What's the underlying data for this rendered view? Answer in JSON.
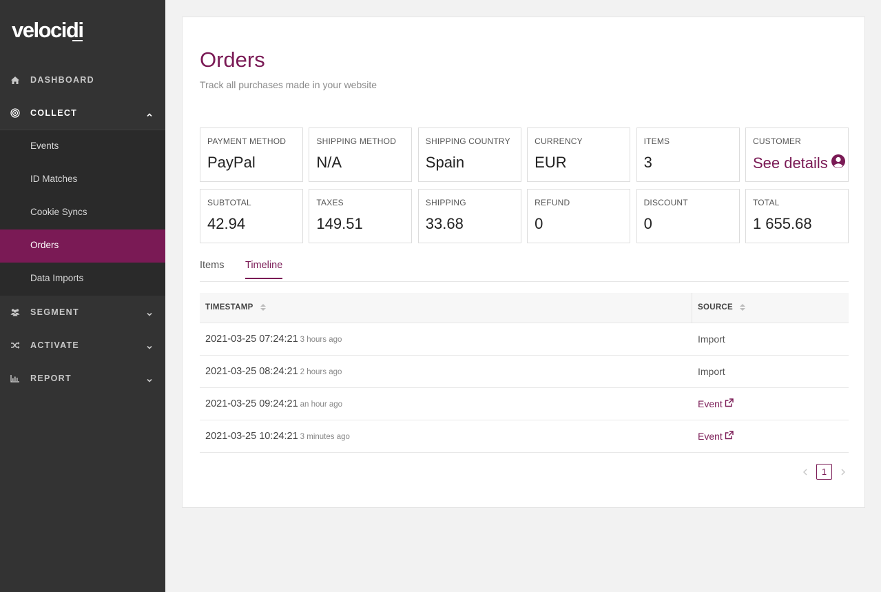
{
  "brand": {
    "logo": "velocidi",
    "accent": "#7a1a55"
  },
  "sidebar": {
    "items": [
      {
        "label": "DASHBOARD",
        "icon": "home-icon"
      },
      {
        "label": "COLLECT",
        "icon": "target-icon",
        "expanded": true,
        "children": [
          {
            "label": "Events"
          },
          {
            "label": "ID Matches"
          },
          {
            "label": "Cookie Syncs"
          },
          {
            "label": "Orders",
            "active": true
          },
          {
            "label": "Data Imports"
          }
        ]
      },
      {
        "label": "SEGMENT",
        "icon": "users-icon"
      },
      {
        "label": "ACTIVATE",
        "icon": "shuffle-icon"
      },
      {
        "label": "REPORT",
        "icon": "bar-chart-icon"
      }
    ]
  },
  "page": {
    "title": "Orders",
    "subtitle": "Track all purchases made in your website"
  },
  "stats": [
    {
      "label": "PAYMENT METHOD",
      "value": "PayPal"
    },
    {
      "label": "SHIPPING METHOD",
      "value": "N/A"
    },
    {
      "label": "SHIPPING COUNTRY",
      "value": "Spain"
    },
    {
      "label": "CURRENCY",
      "value": "EUR"
    },
    {
      "label": "ITEMS",
      "value": "3"
    },
    {
      "label": "CUSTOMER",
      "value": "See details"
    },
    {
      "label": "SUBTOTAL",
      "value": "42.94"
    },
    {
      "label": "TAXES",
      "value": "149.51"
    },
    {
      "label": "SHIPPING",
      "value": "33.68"
    },
    {
      "label": "REFUND",
      "value": "0"
    },
    {
      "label": "DISCOUNT",
      "value": "0"
    },
    {
      "label": "TOTAL",
      "value": "1 655.68"
    }
  ],
  "tabs": [
    {
      "label": "Items"
    },
    {
      "label": "Timeline",
      "active": true
    }
  ],
  "table": {
    "columns": [
      "TIMESTAMP",
      "SOURCE"
    ],
    "rows": [
      {
        "timestamp": "2021-03-25 07:24:21",
        "ago": "3 hours ago",
        "source": "Import"
      },
      {
        "timestamp": "2021-03-25 08:24:21",
        "ago": "2 hours ago",
        "source": "Import"
      },
      {
        "timestamp": "2021-03-25 09:24:21",
        "ago": "an hour ago",
        "source": "Event"
      },
      {
        "timestamp": "2021-03-25 10:24:21",
        "ago": "3 minutes ago",
        "source": "Event"
      }
    ]
  },
  "pagination": {
    "current": "1"
  }
}
